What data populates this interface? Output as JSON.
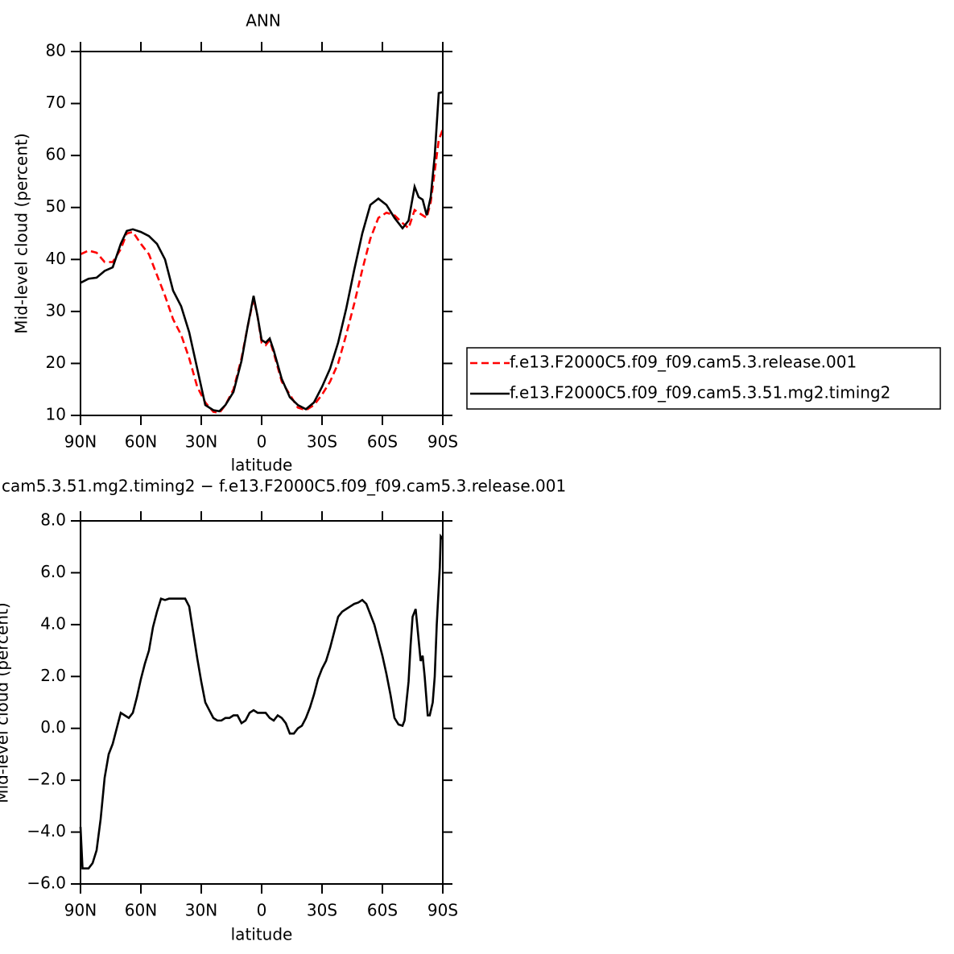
{
  "chart_data": [
    {
      "type": "line",
      "title": "ANN",
      "xlabel": "latitude",
      "ylabel": "Mid-level cloud (percent)",
      "xlim": [
        90,
        -90
      ],
      "xticks": [
        {
          "value": 90,
          "label": "90N"
        },
        {
          "value": 60,
          "label": "60N"
        },
        {
          "value": 30,
          "label": "30N"
        },
        0,
        {
          "value": -30,
          "label": "30S"
        },
        {
          "value": -60,
          "label": "60S"
        },
        {
          "value": -90,
          "label": "90S"
        }
      ],
      "ylim": [
        10,
        80
      ],
      "yticks": [
        10,
        20,
        30,
        40,
        50,
        60,
        70,
        80
      ],
      "legend": "right",
      "x": [
        90,
        86,
        82,
        78,
        74,
        70,
        67,
        64,
        60,
        56,
        52,
        48,
        44,
        40,
        36,
        32,
        28,
        24,
        21,
        18,
        14,
        10,
        7,
        4,
        2,
        0,
        -2,
        -4,
        -6,
        -10,
        -14,
        -18,
        -22,
        -26,
        -30,
        -34,
        -38,
        -42,
        -46,
        -50,
        -54,
        -58,
        -62,
        -66,
        -70,
        -73,
        -76,
        -78,
        -80,
        -82,
        -84,
        -86,
        -88,
        -90
      ],
      "series": [
        {
          "name": "f.e13.F2000C5.f09_f09.cam5.3.release.001",
          "color": "#ff0000",
          "linestyle": "dashed",
          "values": [
            41,
            41.7,
            41.3,
            39.5,
            39.5,
            42,
            45,
            45.3,
            43,
            41,
            37,
            33,
            28.5,
            25.5,
            21,
            15.5,
            12.5,
            10.7,
            10.5,
            12,
            15,
            21,
            27,
            32.5,
            29,
            24,
            23.5,
            24.5,
            22,
            16.5,
            14,
            11.5,
            11,
            12,
            14,
            16.5,
            20,
            25.5,
            31.5,
            38,
            44,
            48,
            49,
            48.5,
            47,
            46,
            49.5,
            49,
            48.5,
            48,
            51,
            57,
            63,
            65
          ]
        },
        {
          "name": "f.e13.F2000C5.f09_f09.cam5.3.51.mg2.timing2",
          "color": "#000000",
          "linestyle": "solid",
          "values": [
            35.5,
            36.3,
            36.5,
            37.8,
            38.5,
            43,
            45.5,
            45.8,
            45.3,
            44.5,
            43,
            40,
            34,
            31,
            26,
            19,
            12,
            11,
            10.8,
            12,
            14.5,
            20.5,
            27,
            33,
            29,
            24.5,
            24,
            24.8,
            22.5,
            17,
            13.5,
            12,
            11.2,
            12.5,
            15.5,
            19,
            24,
            30.5,
            38,
            45,
            50.5,
            51.7,
            50.5,
            48,
            46,
            47.5,
            54,
            52,
            51.5,
            48.5,
            52,
            60,
            72,
            72.2
          ]
        }
      ]
    },
    {
      "type": "line",
      "title": "cam5.3.51.mg2.timing2 − f.e13.F2000C5.f09_f09.cam5.3.release.001",
      "xlabel": "latitude",
      "ylabel": "Mid-level cloud (percent)",
      "xlim": [
        90,
        -90
      ],
      "xticks": [
        {
          "value": 90,
          "label": "90N"
        },
        {
          "value": 60,
          "label": "60N"
        },
        {
          "value": 30,
          "label": "30N"
        },
        0,
        {
          "value": -30,
          "label": "30S"
        },
        {
          "value": -60,
          "label": "60S"
        },
        {
          "value": -90,
          "label": "90S"
        }
      ],
      "ylim": [
        -6,
        8
      ],
      "yticks": [
        {
          "value": -6,
          "label": "−6.0"
        },
        {
          "value": -4,
          "label": "−4.0"
        },
        {
          "value": -2,
          "label": "−2.0"
        },
        {
          "value": 0,
          "label": "0.0"
        },
        {
          "value": 2,
          "label": "2.0"
        },
        {
          "value": 4,
          "label": "4.0"
        },
        {
          "value": 6,
          "label": "6.0"
        },
        {
          "value": 8,
          "label": "8.0"
        }
      ],
      "x": [
        90,
        89,
        86,
        84,
        82,
        80,
        78,
        76,
        74,
        72,
        70,
        68,
        66,
        64,
        62,
        60,
        58,
        56,
        54,
        52,
        50,
        48,
        46,
        44,
        42,
        40,
        38,
        36,
        34,
        32,
        30,
        28,
        26,
        24,
        22,
        20,
        18,
        16,
        14,
        12,
        10,
        8,
        6,
        4,
        2,
        0,
        -2,
        -4,
        -6,
        -8,
        -10,
        -12,
        -14,
        -16,
        -18,
        -20,
        -22,
        -24,
        -26,
        -28,
        -30,
        -32,
        -34,
        -36,
        -38,
        -40,
        -42,
        -44,
        -46,
        -48,
        -50,
        -52,
        -54,
        -56,
        -58,
        -60,
        -62,
        -64,
        -66,
        -68,
        -70,
        -71,
        -73,
        -74,
        -75,
        -76.5,
        -77.5,
        -79,
        -80,
        -81,
        -82.5,
        -83.5,
        -85,
        -86,
        -87,
        -88.5,
        -89,
        -90
      ],
      "series": [
        {
          "color": "#000000",
          "linestyle": "solid",
          "values": [
            -3.8,
            -5.4,
            -5.4,
            -5.2,
            -4.7,
            -3.5,
            -1.9,
            -1.0,
            -0.6,
            0.0,
            0.6,
            0.5,
            0.4,
            0.6,
            1.2,
            1.9,
            2.5,
            3.0,
            3.9,
            4.5,
            5.0,
            4.95,
            5.0,
            5.0,
            5.0,
            5.0,
            5.0,
            4.7,
            3.7,
            2.7,
            1.8,
            1.0,
            0.7,
            0.4,
            0.3,
            0.3,
            0.4,
            0.4,
            0.5,
            0.5,
            0.2,
            0.3,
            0.6,
            0.7,
            0.6,
            0.6,
            0.6,
            0.4,
            0.3,
            0.5,
            0.4,
            0.2,
            -0.2,
            -0.2,
            0.0,
            0.1,
            0.4,
            0.8,
            1.3,
            1.9,
            2.3,
            2.6,
            3.1,
            3.7,
            4.3,
            4.5,
            4.6,
            4.7,
            4.8,
            4.85,
            4.95,
            4.8,
            4.4,
            4.0,
            3.4,
            2.8,
            2.1,
            1.3,
            0.4,
            0.15,
            0.1,
            0.3,
            1.8,
            3.2,
            4.3,
            4.6,
            3.8,
            2.6,
            2.8,
            2.0,
            0.5,
            0.5,
            1.0,
            2.0,
            4.0,
            6.2,
            7.4,
            7.3
          ]
        }
      ]
    }
  ]
}
